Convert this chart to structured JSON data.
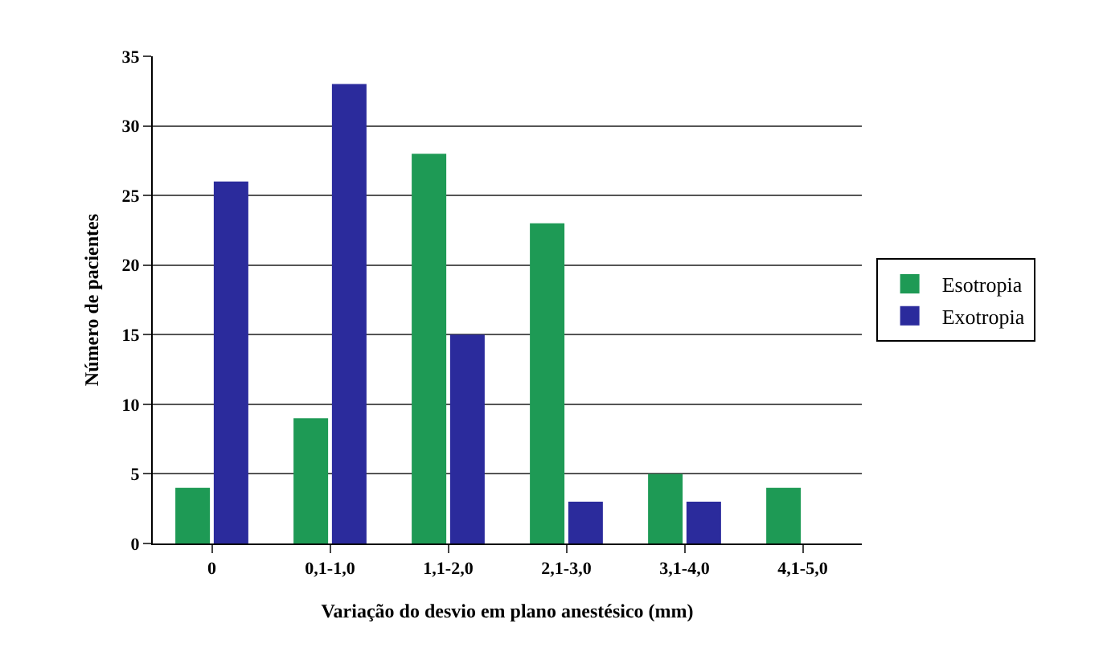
{
  "chart_data": {
    "type": "bar",
    "xlabel": "Variação do desvio em plano anestésico (mm)",
    "ylabel": "Número de pacientes",
    "categories": [
      "0",
      "0,1-1,0",
      "1,1-2,0",
      "2,1-3,0",
      "3,1-4,0",
      "4,1-5,0"
    ],
    "series": [
      {
        "name": "Esotropia",
        "color": "#1e9a55",
        "values": [
          4,
          9,
          28,
          23,
          5,
          4
        ]
      },
      {
        "name": "Exotropia",
        "color": "#2b2b9c",
        "values": [
          26,
          33,
          15,
          3,
          3,
          0
        ]
      }
    ],
    "ylim": [
      0,
      35
    ],
    "yticks": [
      0,
      5,
      10,
      15,
      20,
      25,
      30,
      35
    ],
    "grid": "y",
    "legend": "right"
  }
}
